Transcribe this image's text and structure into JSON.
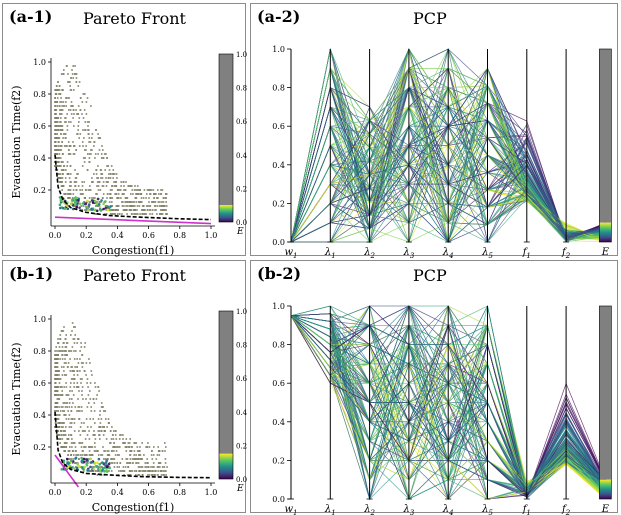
{
  "panels": [
    {
      "label": "(a-1)",
      "title": "Pareto Front"
    },
    {
      "label": "(a-2)",
      "title": "PCP"
    },
    {
      "label": "(b-1)",
      "title": "Pareto Front"
    },
    {
      "label": "(b-2)",
      "title": "PCP"
    }
  ],
  "colors": {
    "scatter_points": "#808068",
    "pareto_front_line": "#000000",
    "fitted_line": "#cc33cc",
    "colorbar_upper": "#808080",
    "colormap": [
      "#440154",
      "#3b528b",
      "#21918c",
      "#5ec962",
      "#fde725"
    ]
  },
  "chart_data": [
    {
      "panel": "a-1",
      "type": "scatter",
      "title": "Pareto Front",
      "xlabel": "Congestion(f1)",
      "ylabel": "Evacuation Time(f2)",
      "xlim": [
        0.0,
        1.0
      ],
      "ylim": [
        0.0,
        1.0
      ],
      "x_ticks": [
        "0.0",
        "0.2",
        "0.4",
        "0.6",
        "0.8",
        "1.0"
      ],
      "y_ticks": [
        "0.2",
        "0.4",
        "0.6",
        "0.8",
        "1.0"
      ],
      "pareto_front": {
        "x": [
          0.0,
          0.02,
          0.05,
          0.1,
          0.2,
          0.35,
          0.55,
          0.8,
          1.0
        ],
        "y": [
          0.42,
          0.22,
          0.14,
          0.09,
          0.06,
          0.04,
          0.03,
          0.02,
          0.015
        ]
      },
      "fitted_line": {
        "x": [
          0.0,
          1.0
        ],
        "y": [
          0.03,
          -0.01
        ]
      },
      "colorbar": {
        "label": "E",
        "ticks": [
          "0.0",
          "0.2",
          "0.4",
          "0.6",
          "0.8",
          "1.0"
        ],
        "colored_range": [
          0.0,
          0.1
        ]
      }
    },
    {
      "panel": "a-2",
      "type": "parallel_coordinates",
      "title": "PCP",
      "axes": [
        "w1",
        "λ1",
        "λ2",
        "λ3",
        "λ4",
        "λ5",
        "f1",
        "f2",
        "E"
      ],
      "ylim": [
        0.0,
        1.0
      ],
      "y_ticks": [
        "0.0",
        "0.2",
        "0.4",
        "0.6",
        "0.8",
        "1.0"
      ],
      "ranges": {
        "w1": [
          0.0,
          0.0
        ],
        "λ1": [
          0.0,
          1.0
        ],
        "λ2": [
          0.0,
          0.7
        ],
        "λ3": [
          0.0,
          1.0
        ],
        "λ4": [
          0.0,
          1.0
        ],
        "λ5": [
          0.0,
          0.9
        ],
        "f1": [
          0.1,
          0.65
        ],
        "f2": [
          0.0,
          0.1
        ],
        "E": [
          0.0,
          0.1
        ]
      }
    },
    {
      "panel": "b-1",
      "type": "scatter",
      "title": "Pareto Front",
      "xlabel": "Congestion(f1)",
      "ylabel": "Evacuation Time(f2)",
      "xlim": [
        0.0,
        1.0
      ],
      "ylim": [
        0.0,
        1.0
      ],
      "x_ticks": [
        "0.0",
        "0.2",
        "0.4",
        "0.6",
        "0.8",
        "1.0"
      ],
      "y_ticks": [
        "0.2",
        "0.4",
        "0.6",
        "0.8",
        "1.0"
      ],
      "pareto_front": {
        "x": [
          0.0,
          0.02,
          0.05,
          0.1,
          0.2,
          0.35,
          0.55,
          0.8,
          1.0
        ],
        "y": [
          0.42,
          0.18,
          0.1,
          0.06,
          0.035,
          0.025,
          0.015,
          0.01,
          0.008
        ]
      },
      "fitted_line": {
        "x": [
          0.0,
          0.15
        ],
        "y": [
          0.15,
          -0.05
        ]
      },
      "colorbar": {
        "label": "E",
        "ticks": [
          "0.0",
          "0.2",
          "0.4",
          "0.6",
          "0.8",
          "1.0"
        ],
        "colored_range": [
          0.0,
          0.15
        ]
      }
    },
    {
      "panel": "b-2",
      "type": "parallel_coordinates",
      "title": "PCP",
      "axes": [
        "w1",
        "λ1",
        "λ2",
        "λ3",
        "λ4",
        "λ5",
        "f1",
        "f2",
        "E"
      ],
      "ylim": [
        0.0,
        1.0
      ],
      "y_ticks": [
        "0.0",
        "0.2",
        "0.4",
        "0.6",
        "0.8",
        "1.0"
      ],
      "ranges": {
        "w1": [
          0.95,
          0.95
        ],
        "λ1": [
          0.6,
          1.0
        ],
        "λ2": [
          0.0,
          1.0
        ],
        "λ3": [
          0.0,
          1.0
        ],
        "λ4": [
          0.0,
          1.0
        ],
        "λ5": [
          0.0,
          1.0
        ],
        "f1": [
          0.0,
          0.1
        ],
        "f2": [
          0.0,
          0.6
        ],
        "E": [
          0.0,
          0.1
        ]
      }
    }
  ]
}
